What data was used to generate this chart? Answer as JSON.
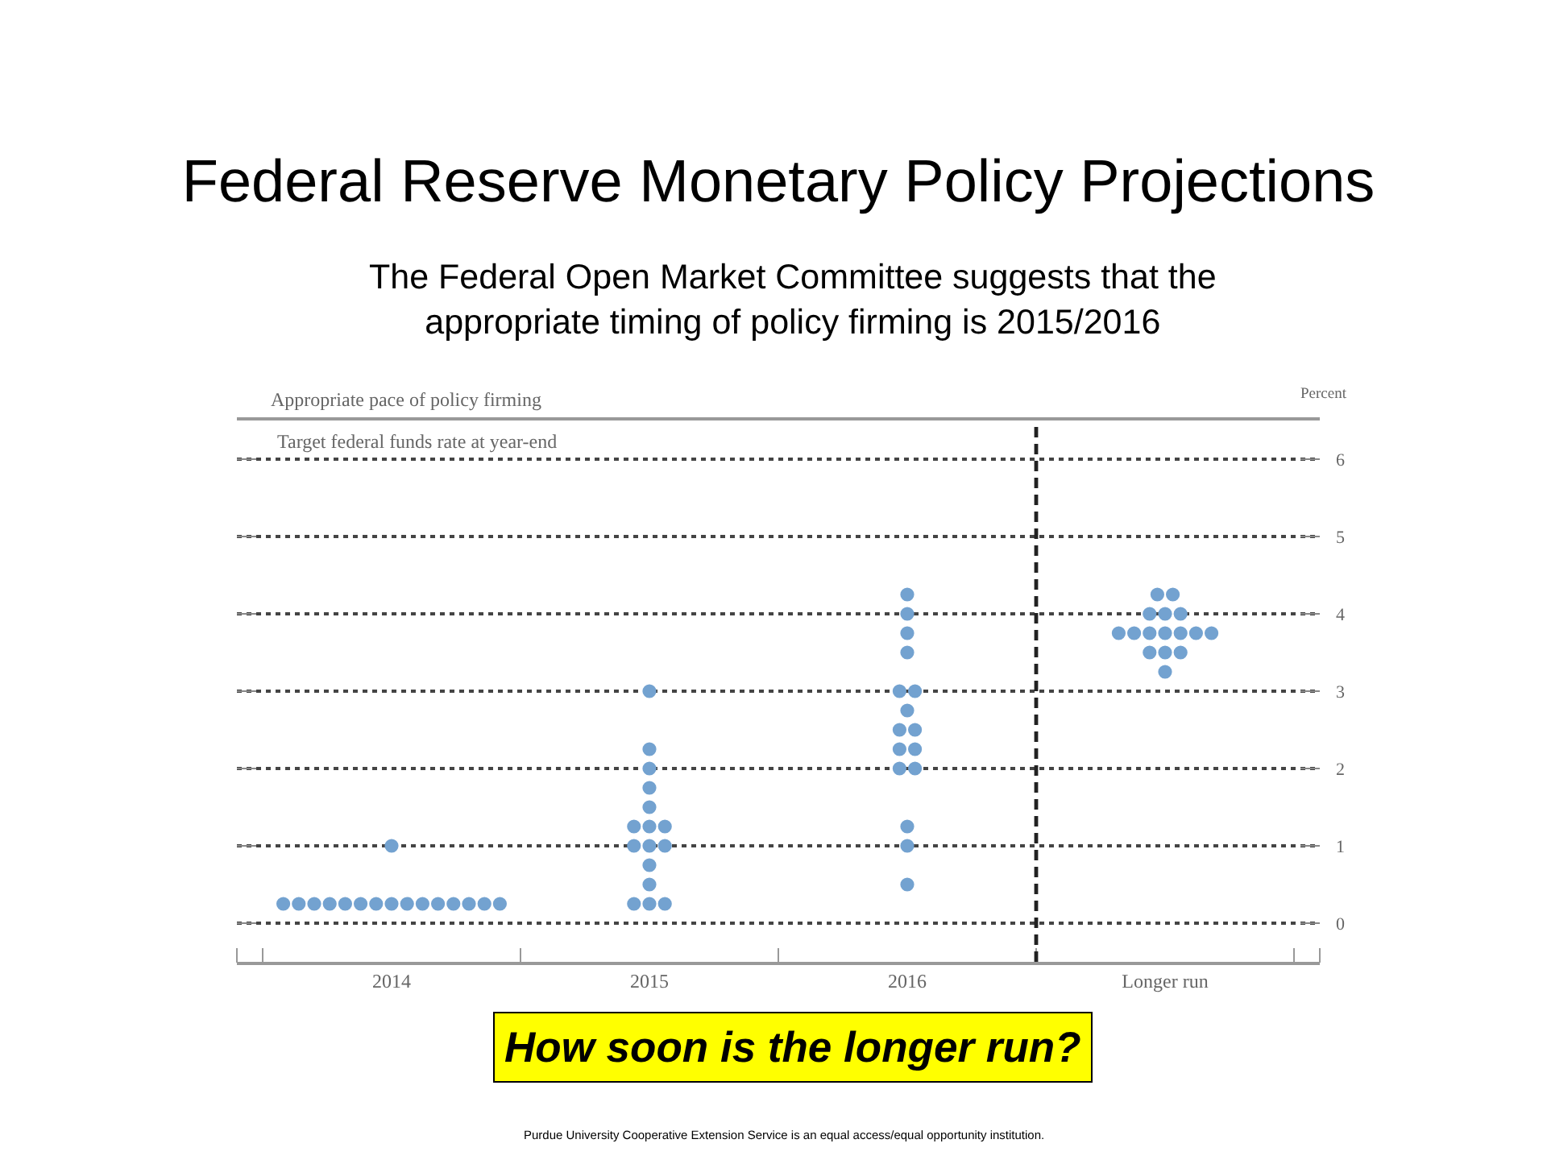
{
  "chart_data": {
    "type": "scatter",
    "title": "Federal Reserve Monetary Policy Projections",
    "subtitle": "The Federal Open Market Committee suggests that the appropriate timing of policy firming is 2015/2016",
    "ylabel": "Percent",
    "annotations": [
      "Appropriate pace of policy firming",
      "Target federal funds rate at year-end",
      "How soon is the longer run?",
      "Purdue University Cooperative Extension Service is an equal access/equal opportunity institution."
    ],
    "categories": [
      "2014",
      "2015",
      "2016",
      "Longer run"
    ],
    "series": [
      {
        "color": "#73a2d0",
        "values": [
          0.25,
          0.25,
          0.5,
          3.25
        ]
      },
      {
        "color": "#73a2d0",
        "values": [
          0.25,
          0.25,
          1,
          3.5
        ]
      },
      {
        "color": "#73a2d0",
        "values": [
          0.25,
          0.25,
          1.25,
          3.5
        ]
      },
      {
        "color": "#73a2d0",
        "values": [
          0.25,
          0.5,
          2,
          3.5
        ]
      },
      {
        "color": "#73a2d0",
        "values": [
          0.25,
          0.75,
          2,
          3.75
        ]
      },
      {
        "color": "#73a2d0",
        "values": [
          0.25,
          1,
          2.25,
          3.75
        ]
      },
      {
        "color": "#73a2d0",
        "values": [
          0.25,
          1,
          2.25,
          3.75
        ]
      },
      {
        "color": "#73a2d0",
        "values": [
          0.25,
          1,
          2.5,
          3.75
        ]
      },
      {
        "color": "#73a2d0",
        "values": [
          0.25,
          1.25,
          2.5,
          3.75
        ]
      },
      {
        "color": "#73a2d0",
        "values": [
          0.25,
          1.25,
          2.75,
          3.75
        ]
      },
      {
        "color": "#73a2d0",
        "values": [
          0.25,
          1.25,
          3,
          3.75
        ]
      },
      {
        "color": "#73a2d0",
        "values": [
          0.25,
          1.5,
          3,
          4
        ]
      },
      {
        "color": "#73a2d0",
        "values": [
          0.25,
          1.75,
          3.5,
          4
        ]
      },
      {
        "color": "#73a2d0",
        "values": [
          0.25,
          2,
          3.75,
          4
        ]
      },
      {
        "color": "#73a2d0",
        "values": [
          0.25,
          2.25,
          4,
          4.25
        ]
      },
      {
        "color": "#73a2d0",
        "values": [
          1,
          3,
          4.25,
          4.25
        ]
      }
    ],
    "ylim": [
      -0.5,
      6.5
    ],
    "yticks": [
      0,
      1,
      2,
      3,
      4,
      5,
      6
    ],
    "grid": "y",
    "marker": "circle"
  }
}
